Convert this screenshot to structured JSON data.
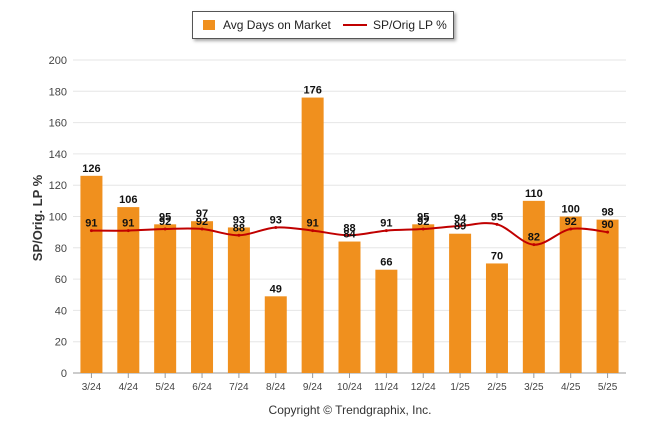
{
  "chart_data": {
    "type": "bar",
    "categories": [
      "3/24",
      "4/24",
      "5/24",
      "6/24",
      "7/24",
      "8/24",
      "9/24",
      "10/24",
      "11/24",
      "12/24",
      "1/25",
      "2/25",
      "3/25",
      "4/25",
      "5/25"
    ],
    "series": [
      {
        "name": "Avg Days on Market",
        "type": "bar",
        "color": "#f0901e",
        "values": [
          126,
          106,
          95,
          97,
          93,
          49,
          176,
          84,
          66,
          95,
          89,
          70,
          110,
          100,
          98
        ]
      },
      {
        "name": "SP/Orig LP %",
        "type": "line",
        "color": "#c00000",
        "values": [
          91,
          91,
          92,
          92,
          88,
          93,
          91,
          88,
          91,
          92,
          94,
          95,
          82,
          92,
          90
        ]
      }
    ],
    "ylabel": "SP/Orig. LP %",
    "yticks": [
      0,
      20,
      40,
      60,
      80,
      100,
      120,
      140,
      160,
      180,
      200
    ],
    "ylim": [
      0,
      200
    ],
    "grid": true,
    "legend": "top-center",
    "footer": "Copyright © Trendgraphix, Inc."
  }
}
